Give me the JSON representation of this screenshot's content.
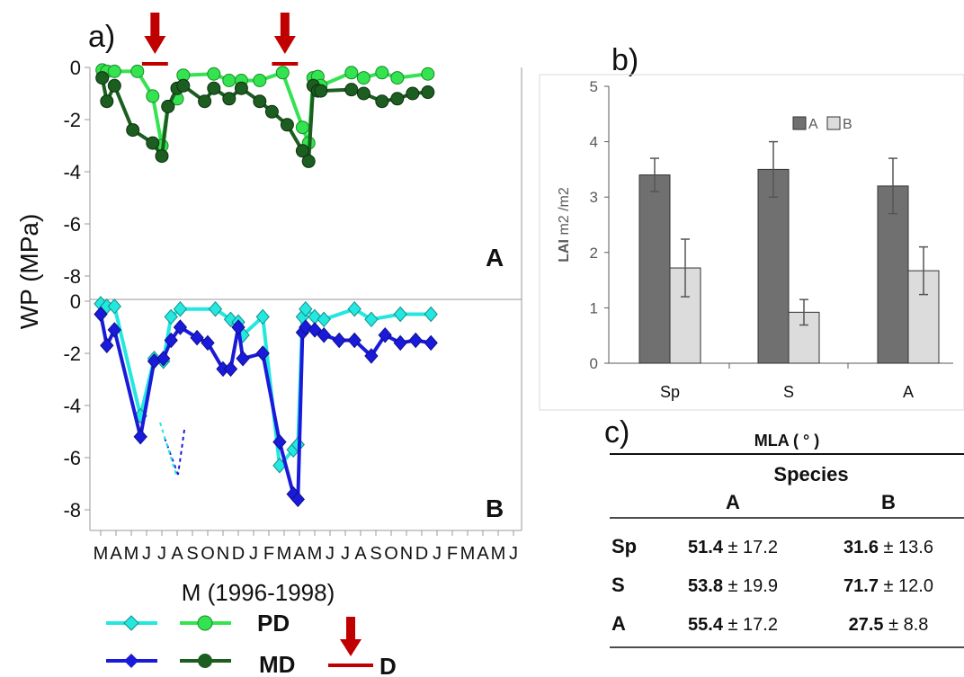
{
  "panel_a": {
    "letter": "a)",
    "ylabel": "WP (MPa)",
    "xlabel": "M (1996-1998)",
    "month_ticks": [
      "M",
      "A",
      "M",
      "J",
      "J",
      "A",
      "S",
      "O",
      "N",
      "D",
      "J",
      "F",
      "M",
      "A",
      "M",
      "J",
      "J",
      "A",
      "S",
      "O",
      "N",
      "D",
      "J",
      "F",
      "M",
      "A",
      "M",
      "J"
    ]
  },
  "panel_b": {
    "letter": "b)"
  },
  "panel_c": {
    "letter": "c)",
    "title": "MLA ( ° )",
    "species_header": "Species",
    "columns": [
      "A",
      "B"
    ],
    "rows": [
      {
        "label": "Sp",
        "a_mean": "51.4",
        "a_err": "± 17.2",
        "b_mean": "31.6",
        "b_err": "± 13.6",
        "a_bold": true,
        "b_bold": true
      },
      {
        "label": "S",
        "a_mean": "53.8",
        "a_err": "± 19.9",
        "b_mean": "71.7",
        "b_err": "± 12.0",
        "a_bold": true,
        "b_bold": true
      },
      {
        "label": "A",
        "a_mean": "55.4",
        "a_err": "± 17.2",
        "b_mean": "27.5",
        "b_err": "± 8.8",
        "a_bold": true,
        "b_bold": true
      }
    ]
  },
  "legend": {
    "pd": "PD",
    "md": "MD",
    "d": "D"
  },
  "colors": {
    "pd_a": "#33e34f",
    "md_a": "#1b5e20",
    "pd_b": "#22e8e0",
    "md_b": "#1a1adb",
    "drought": "#c00000",
    "bar_a": "#707070",
    "bar_b": "#dcdcdc"
  },
  "chart_data": [
    {
      "type": "line",
      "panel": "A",
      "label": "A",
      "x_unit": "month index (0 = M 1996)",
      "ylim": [
        -9,
        0
      ],
      "yticks": [
        0,
        -2,
        -4,
        -6,
        -8
      ],
      "drought_periods": [
        [
          2.7,
          4.4
        ],
        [
          11.2,
          12.9
        ]
      ],
      "series": [
        {
          "name": "PD",
          "x": [
            0.1,
            0.4,
            0.9,
            2.4,
            3.4,
            4.0,
            4.4,
            5.0,
            5.4,
            7.4,
            8.4,
            9.2,
            10.4,
            11.9,
            13.2,
            13.6,
            13.9,
            14.2,
            14.4,
            16.4,
            17.2,
            18.4,
            19.4,
            21.4
          ],
          "y": [
            -0.1,
            -0.15,
            -0.15,
            -0.15,
            -1.1,
            -3.0,
            -1.5,
            -1.2,
            -0.3,
            -0.25,
            -0.5,
            -0.5,
            -0.5,
            -0.2,
            -2.3,
            -2.9,
            -0.4,
            -0.35,
            -0.7,
            -0.2,
            -0.4,
            -0.2,
            -0.4,
            -0.25
          ]
        },
        {
          "name": "MD",
          "x": [
            0.1,
            0.4,
            0.9,
            2.1,
            3.4,
            4.0,
            4.4,
            5.0,
            5.4,
            6.8,
            7.4,
            8.4,
            9.2,
            10.4,
            11.2,
            12.2,
            13.2,
            13.6,
            13.9,
            14.2,
            14.4,
            16.4,
            17.2,
            18.4,
            19.4,
            20.4,
            21.4
          ],
          "y": [
            -0.4,
            -1.3,
            -0.7,
            -2.4,
            -2.9,
            -3.4,
            -1.5,
            -0.8,
            -0.7,
            -1.3,
            -0.8,
            -1.2,
            -0.8,
            -1.3,
            -1.7,
            -2.2,
            -3.2,
            -3.6,
            -0.7,
            -0.9,
            -0.9,
            -0.85,
            -1.0,
            -1.3,
            -1.2,
            -1.0,
            -0.95
          ]
        }
      ]
    },
    {
      "type": "line",
      "panel": "B",
      "label": "B",
      "ylim": [
        -9,
        0
      ],
      "yticks": [
        0,
        -2,
        -4,
        -6,
        -8
      ],
      "series": [
        {
          "name": "PD",
          "x": [
            0.0,
            0.4,
            0.9,
            2.6,
            3.5,
            4.1,
            4.6,
            5.2,
            7.5,
            8.5,
            9.0,
            9.3,
            10.6,
            11.7,
            12.6,
            12.9,
            13.2,
            13.4,
            14.0,
            14.6,
            16.6,
            17.7,
            19.6,
            21.6
          ],
          "y": [
            -0.1,
            -0.2,
            -0.2,
            -4.4,
            -2.2,
            -2.3,
            -0.6,
            -0.3,
            -0.3,
            -0.7,
            -0.8,
            -1.3,
            -0.6,
            -6.3,
            -5.7,
            -5.5,
            -0.6,
            -0.3,
            -0.6,
            -0.7,
            -0.3,
            -0.7,
            -0.5,
            -0.5
          ]
        },
        {
          "name": "MD",
          "x": [
            0.0,
            0.4,
            0.9,
            2.6,
            3.5,
            4.1,
            4.6,
            5.2,
            6.3,
            7.0,
            8.0,
            8.5,
            9.0,
            9.3,
            10.6,
            11.7,
            12.6,
            12.9,
            13.2,
            13.4,
            14.0,
            14.6,
            15.6,
            16.6,
            17.7,
            18.6,
            19.6,
            20.6,
            21.6
          ],
          "y": [
            -0.5,
            -1.7,
            -1.1,
            -5.2,
            -2.3,
            -2.2,
            -1.5,
            -1.0,
            -1.4,
            -1.6,
            -2.6,
            -2.6,
            -1.0,
            -2.2,
            -2.0,
            -5.4,
            -7.4,
            -7.6,
            -1.2,
            -1.0,
            -1.1,
            -1.3,
            -1.5,
            -1.5,
            -2.1,
            -1.3,
            -1.6,
            -1.5,
            -1.6
          ]
        }
      ]
    },
    {
      "type": "bar",
      "panel": "b",
      "ylabel": "LAI m2 /m2",
      "categories": [
        "Sp",
        "S",
        "A"
      ],
      "ylim": [
        0,
        5
      ],
      "yticks": [
        0,
        1,
        2,
        3,
        4,
        5
      ],
      "legend_position": "top",
      "series": [
        {
          "name": "A",
          "values": [
            3.4,
            3.5,
            3.2
          ],
          "errors": [
            0.3,
            0.5,
            0.5
          ]
        },
        {
          "name": "B",
          "values": [
            1.72,
            0.92,
            1.67
          ],
          "errors": [
            0.52,
            0.23,
            0.43
          ]
        }
      ]
    }
  ]
}
